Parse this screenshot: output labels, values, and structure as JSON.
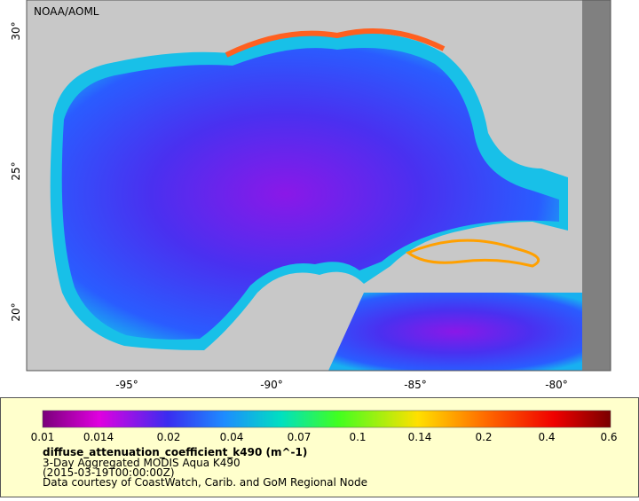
{
  "map": {
    "credit": "NOAA/AOML",
    "lat_labels": [
      "30°",
      "25°",
      "20°"
    ],
    "lon_labels": [
      "-95°",
      "-90°",
      "-85°",
      "-80°"
    ]
  },
  "legend": {
    "ticks": [
      "0.01",
      "0.014",
      "0.02",
      "0.04",
      "0.07",
      "0.1",
      "0.14",
      "0.2",
      "0.4",
      "0.6"
    ],
    "variable": "diffuse_attenuation_coefficient_k490 (m^-1)",
    "product": "3-Day Aggregated MODIS Aqua K490",
    "date": "(2015-03-19T00:00:00Z)",
    "source": "Data courtesy of CoastWatch, Carib. and GoM Regional Node"
  }
}
